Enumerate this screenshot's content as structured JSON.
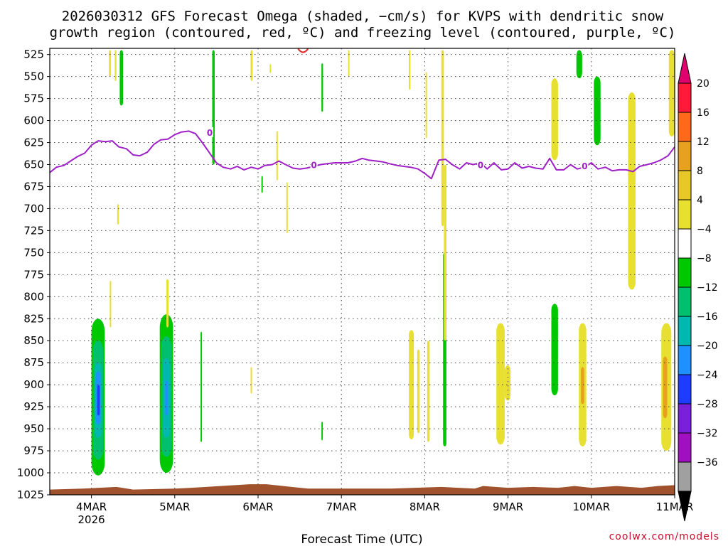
{
  "title_line1": "2026030312 GFS Forecast Omega (shaded, −cm/s) for KVPS with dendritic snow",
  "title_line2": "growth region (contoured, red, ºC) and freezing level (contoured, purple, ºC)",
  "credit": "coolwx.com/models",
  "chart_data": {
    "type": "heatmap",
    "title": "2026030312 GFS Forecast Omega (shaded, −cm/s) for KVPS with dendritic snow growth region (contoured, red, ºC) and freezing level (contoured, purple, ºC)",
    "xlabel": "Forecast Time (UTC)",
    "ylabel": "",
    "x_range_days": [
      3.5,
      11.0
    ],
    "y_range_hpa": [
      1025,
      518
    ],
    "y_ticks": [
      525,
      550,
      575,
      600,
      625,
      650,
      675,
      700,
      725,
      750,
      775,
      800,
      825,
      850,
      875,
      900,
      925,
      950,
      975,
      1000,
      1025
    ],
    "x_ticks": [
      {
        "day": 4,
        "label": "4MAR",
        "sublabel": "2026"
      },
      {
        "day": 5,
        "label": "5MAR",
        "sublabel": ""
      },
      {
        "day": 6,
        "label": "6MAR",
        "sublabel": ""
      },
      {
        "day": 7,
        "label": "7MAR",
        "sublabel": ""
      },
      {
        "day": 8,
        "label": "8MAR",
        "sublabel": ""
      },
      {
        "day": 9,
        "label": "9MAR",
        "sublabel": ""
      },
      {
        "day": 10,
        "label": "10MAR",
        "sublabel": ""
      },
      {
        "day": 11,
        "label": "11MAR",
        "sublabel": ""
      }
    ],
    "grid": true,
    "colorbar": {
      "labels": [
        "20",
        "16",
        "12",
        "8",
        "4",
        "−4",
        "−8",
        "−12",
        "−16",
        "−20",
        "−24",
        "−28",
        "−32",
        "−36"
      ],
      "colors": [
        "#ff1a3c",
        "#ff6a1a",
        "#e8a020",
        "#e8c828",
        "#e8e030",
        "#ffffff",
        "#00c800",
        "#00c070",
        "#00b8b0",
        "#1e90ff",
        "#1e3cff",
        "#7a20d8",
        "#a010c0",
        "#a0a0a0"
      ],
      "top_arrow_color": "#e0006e",
      "bottom_arrow_color": "#000000"
    },
    "freezing_level": {
      "label": "0",
      "points": [
        [
          3.5,
          659
        ],
        [
          3.58,
          653
        ],
        [
          3.67,
          651
        ],
        [
          3.75,
          646
        ],
        [
          3.83,
          641
        ],
        [
          3.92,
          637
        ],
        [
          4.0,
          628
        ],
        [
          4.08,
          623
        ],
        [
          4.17,
          624
        ],
        [
          4.25,
          623
        ],
        [
          4.33,
          630
        ],
        [
          4.42,
          632
        ],
        [
          4.5,
          639
        ],
        [
          4.58,
          640
        ],
        [
          4.67,
          636
        ],
        [
          4.75,
          627
        ],
        [
          4.83,
          622
        ],
        [
          4.92,
          621
        ],
        [
          5.0,
          616
        ],
        [
          5.08,
          613
        ],
        [
          5.17,
          612
        ],
        [
          5.25,
          615
        ],
        [
          5.33,
          625
        ],
        [
          5.42,
          637
        ],
        [
          5.5,
          648
        ],
        [
          5.58,
          653
        ],
        [
          5.67,
          655
        ],
        [
          5.75,
          652
        ],
        [
          5.83,
          656
        ],
        [
          5.92,
          653
        ],
        [
          6.0,
          655
        ],
        [
          6.08,
          651
        ],
        [
          6.17,
          650
        ],
        [
          6.25,
          646
        ],
        [
          6.33,
          650
        ],
        [
          6.42,
          654
        ],
        [
          6.5,
          655
        ],
        [
          6.58,
          654
        ],
        [
          6.67,
          652
        ],
        [
          6.75,
          650
        ],
        [
          6.83,
          649
        ],
        [
          6.92,
          648
        ],
        [
          7.0,
          648
        ],
        [
          7.08,
          648
        ],
        [
          7.17,
          646
        ],
        [
          7.25,
          643
        ],
        [
          7.33,
          645
        ],
        [
          7.42,
          646
        ],
        [
          7.5,
          647
        ],
        [
          7.58,
          649
        ],
        [
          7.67,
          651
        ],
        [
          7.75,
          652
        ],
        [
          7.83,
          653
        ],
        [
          7.92,
          655
        ],
        [
          8.0,
          660
        ],
        [
          8.08,
          666
        ],
        [
          8.17,
          645
        ],
        [
          8.25,
          644
        ],
        [
          8.33,
          650
        ],
        [
          8.42,
          655
        ],
        [
          8.5,
          648
        ],
        [
          8.58,
          650
        ],
        [
          8.67,
          648
        ],
        [
          8.75,
          655
        ],
        [
          8.83,
          648
        ],
        [
          8.92,
          656
        ],
        [
          9.0,
          655
        ],
        [
          9.08,
          648
        ],
        [
          9.17,
          654
        ],
        [
          9.25,
          652
        ],
        [
          9.33,
          654
        ],
        [
          9.42,
          655
        ],
        [
          9.5,
          643
        ],
        [
          9.58,
          656
        ],
        [
          9.67,
          656
        ],
        [
          9.75,
          650
        ],
        [
          9.83,
          655
        ],
        [
          9.92,
          653
        ],
        [
          10.0,
          648
        ],
        [
          10.08,
          655
        ],
        [
          10.17,
          653
        ],
        [
          10.25,
          657
        ],
        [
          10.33,
          656
        ],
        [
          10.42,
          656
        ],
        [
          10.5,
          658
        ],
        [
          10.58,
          652
        ],
        [
          10.67,
          650
        ],
        [
          10.75,
          648
        ],
        [
          10.83,
          645
        ],
        [
          10.92,
          640
        ],
        [
          11.0,
          630
        ]
      ],
      "label_positions": [
        [
          5.42,
          614
        ],
        [
          6.67,
          651
        ],
        [
          8.67,
          651
        ],
        [
          9.92,
          652
        ]
      ]
    },
    "omega_regions": [
      {
        "x": 4.0,
        "w": 0.16,
        "top": 825,
        "bottom": 1003,
        "color": "#00c800"
      },
      {
        "x": 4.02,
        "w": 0.12,
        "top": 850,
        "bottom": 985,
        "color": "#00c070"
      },
      {
        "x": 4.04,
        "w": 0.08,
        "top": 875,
        "bottom": 960,
        "color": "#00b8b0"
      },
      {
        "x": 4.05,
        "w": 0.06,
        "top": 885,
        "bottom": 945,
        "color": "#1e90ff"
      },
      {
        "x": 4.07,
        "w": 0.03,
        "top": 900,
        "bottom": 935,
        "color": "#1e3cff"
      },
      {
        "x": 4.82,
        "w": 0.16,
        "top": 820,
        "bottom": 1000,
        "color": "#00c800"
      },
      {
        "x": 4.84,
        "w": 0.12,
        "top": 845,
        "bottom": 982,
        "color": "#00c070"
      },
      {
        "x": 4.86,
        "w": 0.08,
        "top": 870,
        "bottom": 960,
        "color": "#00b8b0"
      },
      {
        "x": 4.885,
        "w": 0.035,
        "top": 895,
        "bottom": 935,
        "color": "#1e90ff"
      },
      {
        "x": 5.45,
        "w": 0.03,
        "top": 520,
        "bottom": 650,
        "color": "#00c800"
      },
      {
        "x": 5.31,
        "w": 0.015,
        "top": 840,
        "bottom": 965,
        "color": "#00c800"
      },
      {
        "x": 4.34,
        "w": 0.04,
        "top": 520,
        "bottom": 583,
        "color": "#00c800"
      },
      {
        "x": 6.76,
        "w": 0.02,
        "top": 535,
        "bottom": 590,
        "color": "#00c800"
      },
      {
        "x": 6.76,
        "w": 0.015,
        "top": 942,
        "bottom": 963,
        "color": "#00c800"
      },
      {
        "x": 6.04,
        "w": 0.015,
        "top": 663,
        "bottom": 682,
        "color": "#00c800"
      },
      {
        "x": 8.22,
        "w": 0.04,
        "top": 750,
        "bottom": 970,
        "color": "#00c800"
      },
      {
        "x": 9.52,
        "w": 0.08,
        "top": 808,
        "bottom": 912,
        "color": "#00c800"
      },
      {
        "x": 9.82,
        "w": 0.07,
        "top": 520,
        "bottom": 552,
        "color": "#00c800"
      },
      {
        "x": 10.03,
        "w": 0.08,
        "top": 550,
        "bottom": 628,
        "color": "#00c800"
      },
      {
        "x": 9.52,
        "w": 0.08,
        "top": 552,
        "bottom": 645,
        "color": "#e8e030"
      },
      {
        "x": 10.44,
        "w": 0.09,
        "top": 568,
        "bottom": 792,
        "color": "#e8e030"
      },
      {
        "x": 10.93,
        "w": 0.07,
        "top": 520,
        "bottom": 618,
        "color": "#e8e030"
      },
      {
        "x": 8.86,
        "w": 0.1,
        "top": 830,
        "bottom": 968,
        "color": "#e8e030"
      },
      {
        "x": 8.96,
        "w": 0.07,
        "top": 878,
        "bottom": 918,
        "color": "#e8e030"
      },
      {
        "x": 9.85,
        "w": 0.09,
        "top": 830,
        "bottom": 970,
        "color": "#e8e030"
      },
      {
        "x": 9.875,
        "w": 0.04,
        "top": 880,
        "bottom": 922,
        "color": "#e8a020"
      },
      {
        "x": 10.84,
        "w": 0.12,
        "top": 830,
        "bottom": 975,
        "color": "#e8e030"
      },
      {
        "x": 10.86,
        "w": 0.05,
        "top": 868,
        "bottom": 938,
        "color": "#e8a020"
      },
      {
        "x": 7.81,
        "w": 0.06,
        "top": 838,
        "bottom": 962,
        "color": "#e8e030"
      },
      {
        "x": 7.91,
        "w": 0.03,
        "top": 860,
        "bottom": 955,
        "color": "#e8e030"
      },
      {
        "x": 8.03,
        "w": 0.03,
        "top": 850,
        "bottom": 965,
        "color": "#e8e030"
      },
      {
        "x": 8.2,
        "w": 0.03,
        "top": 520,
        "bottom": 720,
        "color": "#e8e030"
      },
      {
        "x": 8.23,
        "w": 0.03,
        "top": 650,
        "bottom": 850,
        "color": "#e8e030"
      },
      {
        "x": 7.81,
        "w": 0.02,
        "top": 520,
        "bottom": 565,
        "color": "#e8e030"
      },
      {
        "x": 8.01,
        "w": 0.015,
        "top": 545,
        "bottom": 620,
        "color": "#e8e030"
      },
      {
        "x": 4.21,
        "w": 0.025,
        "top": 520,
        "bottom": 550,
        "color": "#e8e030"
      },
      {
        "x": 4.31,
        "w": 0.02,
        "top": 695,
        "bottom": 718,
        "color": "#e8e030"
      },
      {
        "x": 4.28,
        "w": 0.02,
        "top": 520,
        "bottom": 555,
        "color": "#e8e030"
      },
      {
        "x": 4.22,
        "w": 0.015,
        "top": 782,
        "bottom": 835,
        "color": "#e8e030"
      },
      {
        "x": 4.9,
        "w": 0.025,
        "top": 780,
        "bottom": 835,
        "color": "#e8e030"
      },
      {
        "x": 5.91,
        "w": 0.025,
        "top": 520,
        "bottom": 555,
        "color": "#e8e030"
      },
      {
        "x": 6.22,
        "w": 0.015,
        "top": 612,
        "bottom": 668,
        "color": "#e8e030"
      },
      {
        "x": 6.34,
        "w": 0.015,
        "top": 670,
        "bottom": 728,
        "color": "#e8e030"
      },
      {
        "x": 5.91,
        "w": 0.015,
        "top": 880,
        "bottom": 910,
        "color": "#e8e030"
      },
      {
        "x": 7.08,
        "w": 0.015,
        "top": 520,
        "bottom": 550,
        "color": "#e8e030"
      },
      {
        "x": 6.14,
        "w": 0.01,
        "top": 536,
        "bottom": 546,
        "color": "#e8e030"
      }
    ],
    "dgz_contour": {
      "x": 6.54,
      "hpa": 520,
      "color": "#e03030"
    },
    "terrain_color": "#a0522d"
  }
}
